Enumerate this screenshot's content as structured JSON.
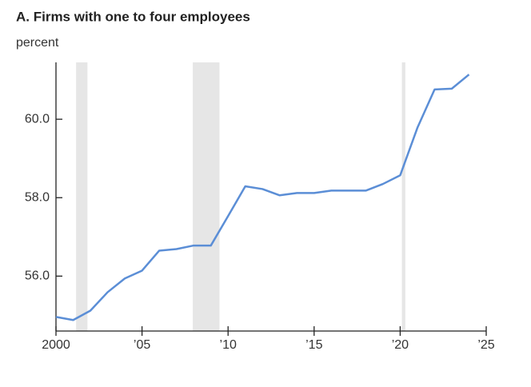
{
  "chart_data": {
    "type": "line",
    "title": "A. Firms with one to four employees",
    "subtitle": "percent",
    "x": [
      2000,
      2001,
      2002,
      2003,
      2004,
      2005,
      2006,
      2007,
      2008,
      2009,
      2010,
      2011,
      2012,
      2013,
      2014,
      2015,
      2016,
      2017,
      2018,
      2019,
      2020,
      2021,
      2022,
      2023,
      2024
    ],
    "series": [
      {
        "color": "#5b8ed6",
        "values": [
          54.96,
          54.88,
          55.12,
          55.59,
          55.94,
          56.14,
          56.65,
          56.69,
          56.78,
          56.78,
          57.53,
          58.29,
          58.22,
          58.06,
          58.12,
          58.12,
          58.18,
          58.18,
          58.18,
          58.35,
          58.57,
          59.78,
          60.76,
          60.78,
          61.14
        ]
      }
    ],
    "recessions": [
      [
        2001.17,
        2001.83
      ],
      [
        2007.95,
        2009.5
      ],
      [
        2020.1,
        2020.3
      ]
    ],
    "recession_color": "#e6e6e6",
    "xlim": [
      2000,
      2025
    ],
    "xticks": [
      2000,
      {
        "value": 2005,
        "label": "’05"
      },
      {
        "value": 2010,
        "label": "’10"
      },
      {
        "value": 2015,
        "label": "’15"
      },
      {
        "value": 2020,
        "label": "’20"
      },
      {
        "value": 2025,
        "label": "’25"
      }
    ],
    "ylim": [
      54.6,
      61.45
    ],
    "yticks": [
      {
        "value": 56,
        "label": "56.0"
      },
      {
        "value": 58,
        "label": "58.0"
      },
      {
        "value": 60,
        "label": "60.0"
      }
    ],
    "grid": false
  }
}
